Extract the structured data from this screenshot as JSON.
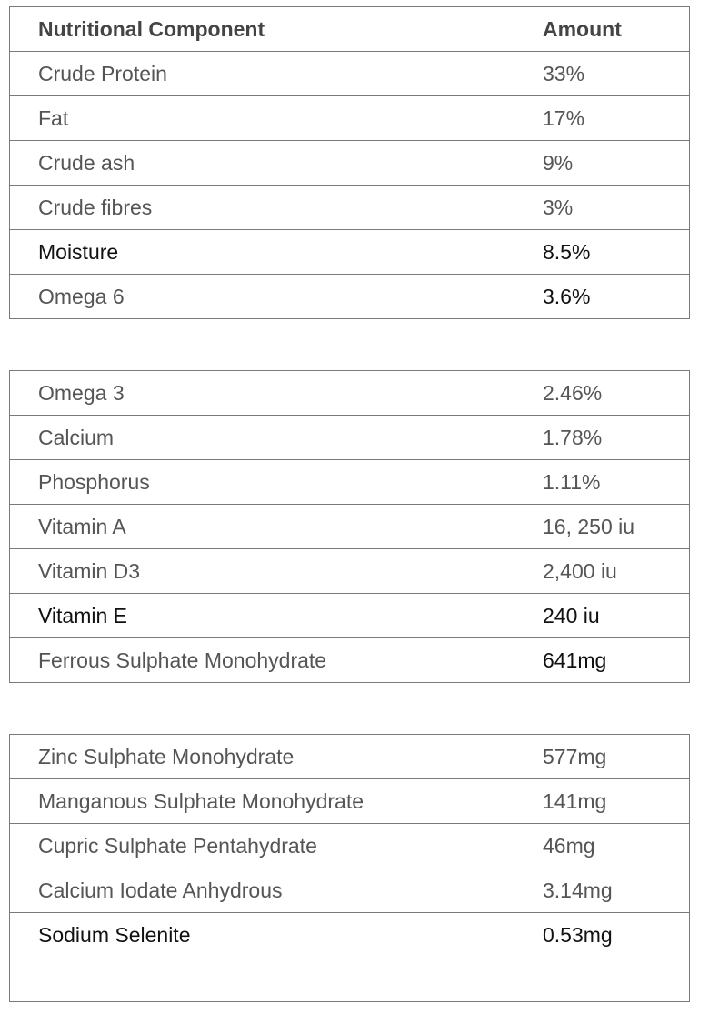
{
  "table1": {
    "header": {
      "component": "Nutritional Component",
      "amount": "Amount"
    },
    "rows": [
      {
        "component": "Crude Protein",
        "amount": "33%"
      },
      {
        "component": "Fat",
        "amount": "17%"
      },
      {
        "component": "Crude ash",
        "amount": "9%"
      },
      {
        "component": "Crude fibres",
        "amount": "3%"
      },
      {
        "component": "Moisture",
        "amount": "8.5%"
      },
      {
        "component": "Omega 6",
        "amount": "3.6%"
      }
    ]
  },
  "table2": {
    "rows": [
      {
        "component": "Omega 3",
        "amount": "2.46%"
      },
      {
        "component": "Calcium",
        "amount": "1.78%"
      },
      {
        "component": "Phosphorus",
        "amount": "1.11%"
      },
      {
        "component": "Vitamin A",
        "amount": "16, 250 iu"
      },
      {
        "component": "Vitamin D3",
        "amount": "2,400 iu"
      },
      {
        "component": "Vitamin E",
        "amount": "240 iu"
      },
      {
        "component": "Ferrous Sulphate Monohydrate",
        "amount": "641mg"
      }
    ]
  },
  "table3": {
    "rows": [
      {
        "component": "Zinc Sulphate Monohydrate",
        "amount": "577mg"
      },
      {
        "component": "Manganous Sulphate Monohydrate",
        "amount": "141mg"
      },
      {
        "component": "Cupric Sulphate Pentahydrate",
        "amount": "46mg"
      },
      {
        "component": "Calcium Iodate Anhydrous",
        "amount": "3.14mg"
      },
      {
        "component": "Sodium Selenite",
        "amount": "0.53mg"
      }
    ]
  }
}
